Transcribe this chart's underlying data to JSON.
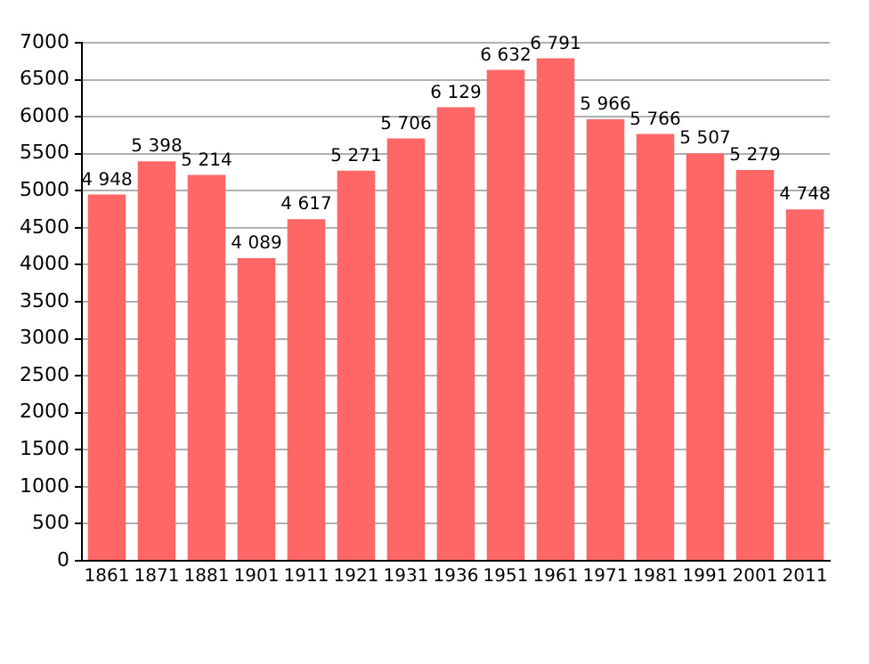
{
  "chart_data": {
    "type": "bar",
    "categories": [
      "1861",
      "1871",
      "1881",
      "1901",
      "1911",
      "1921",
      "1931",
      "1936",
      "1951",
      "1961",
      "1971",
      "1981",
      "1991",
      "2001",
      "2011"
    ],
    "values": [
      4948,
      5398,
      5214,
      4089,
      4617,
      5271,
      5706,
      6129,
      6632,
      6791,
      5966,
      5766,
      5507,
      5279,
      4748
    ],
    "value_labels": [
      "4 948",
      "5 398",
      "5 214",
      "4 089",
      "4 617",
      "5 271",
      "5 706",
      "6 129",
      "6 632",
      "6 791",
      "5 966",
      "5 766",
      "5 507",
      "5 279",
      "4 748"
    ],
    "color": "#ff6666",
    "ylim": [
      0,
      7000
    ],
    "yticks": [
      0,
      500,
      1000,
      1500,
      2000,
      2500,
      3000,
      3500,
      4000,
      4500,
      5000,
      5500,
      6000,
      6500,
      7000
    ],
    "grid": "y"
  }
}
